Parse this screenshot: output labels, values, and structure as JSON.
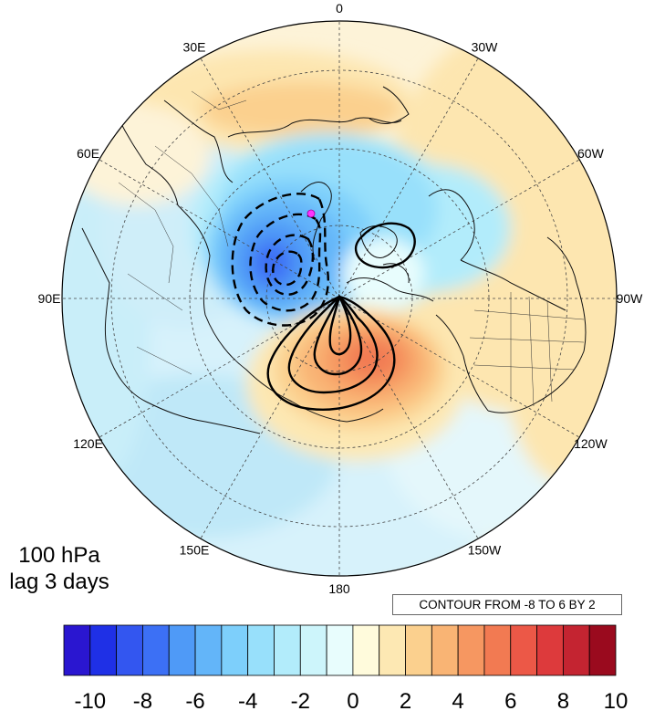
{
  "longitude_labels": [
    "0",
    "30W",
    "60W",
    "90W",
    "120W",
    "150W",
    "180",
    "150E",
    "120E",
    "90E",
    "60E",
    "30E"
  ],
  "panel": {
    "level": "100 hPa",
    "lag": "lag 3 days"
  },
  "contour_info": "CONTOUR FROM -8 TO 6 BY 2",
  "projection": "north-polar-stereographic",
  "marker_color": "#ff33ff",
  "colorbar": {
    "colors": [
      "#2a16d0",
      "#1f30e6",
      "#3356f0",
      "#3c70f5",
      "#4f9af7",
      "#63b5f9",
      "#7dcffb",
      "#98e0fb",
      "#b2ecfb",
      "#cdf5fb",
      "#e8fdfd",
      "#fffbdc",
      "#fde8b3",
      "#fbd08e",
      "#f9b474",
      "#f69761",
      "#f27a52",
      "#ec5847",
      "#dd3a3c",
      "#c42431",
      "#9a0a1e"
    ],
    "tick_labels": [
      "-10",
      "-8",
      "-6",
      "-4",
      "-2",
      "0",
      "2",
      "4",
      "6",
      "8",
      "10"
    ]
  }
}
